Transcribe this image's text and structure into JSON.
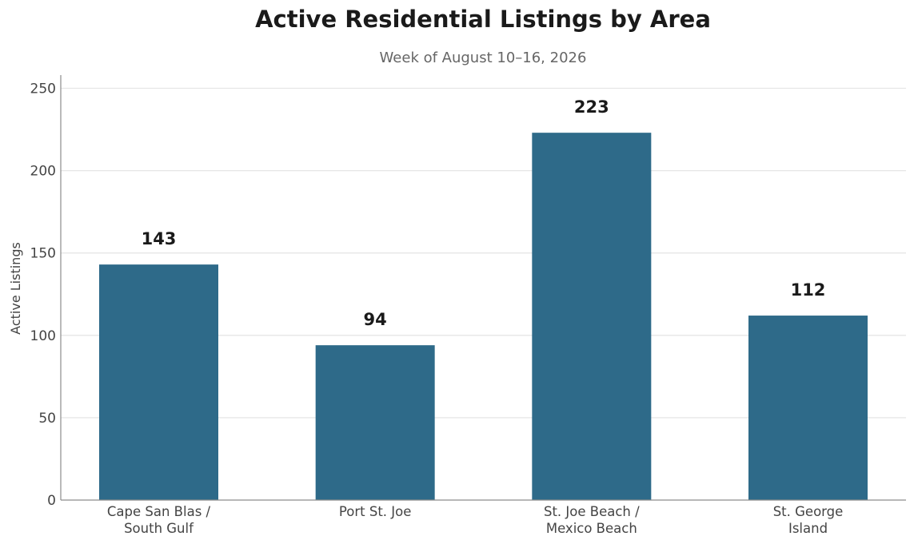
{
  "chart_data": {
    "type": "bar",
    "title": "Active Residential Listings by Area",
    "subtitle": "Week of August 10–16, 2026",
    "xlabel": "",
    "ylabel": "Active Listings",
    "categories": [
      [
        "Cape San Blas /",
        "South Gulf"
      ],
      [
        "Port St. Joe"
      ],
      [
        "St. Joe Beach /",
        "Mexico Beach"
      ],
      [
        "St. George",
        "Island"
      ]
    ],
    "values": [
      143,
      94,
      223,
      112
    ],
    "data_labels": [
      "143",
      "94",
      "223",
      "112"
    ],
    "ylim": [
      0,
      258
    ],
    "yticks": [
      0,
      50,
      100,
      150,
      200,
      250
    ],
    "grid": "horizontal",
    "legend": "none",
    "bar_color": "#2e6a89"
  }
}
